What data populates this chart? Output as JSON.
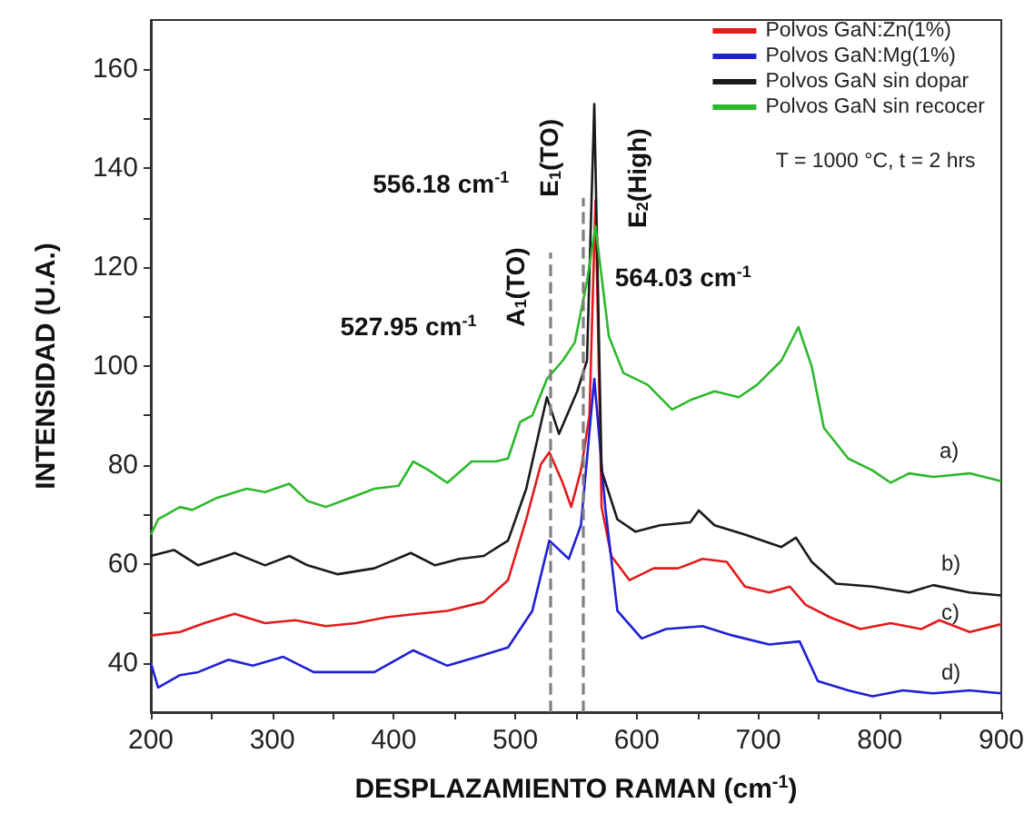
{
  "chart_data": {
    "type": "line",
    "xlabel": "DESPLAZAMIENTO RAMAN (cm$^{-1}$)",
    "ylabel": "INTENSIDAD (U.A.)",
    "xlim": [
      200,
      900
    ],
    "xticks": [
      200,
      {
        "value": 250,
        "label": null
      },
      300,
      {
        "value": 350,
        "label": null
      },
      400,
      {
        "value": 450,
        "label": null
      },
      500,
      {
        "value": 550,
        "label": null
      },
      600,
      {
        "value": 650,
        "label": null
      },
      700,
      {
        "value": 750,
        "label": null
      },
      800,
      {
        "value": 850,
        "label": null
      },
      900
    ],
    "ylim": [
      30,
      170
    ],
    "yticks": [
      40,
      {
        "value": 50,
        "label": null
      },
      60,
      {
        "value": 70,
        "label": null
      },
      80,
      {
        "value": 90,
        "label": null
      },
      100,
      {
        "value": 110,
        "label": null
      },
      120,
      {
        "value": 130,
        "label": null
      },
      140,
      {
        "value": 150,
        "label": null
      },
      160
    ],
    "grid": false,
    "legend": "top right",
    "marker": "none",
    "line_style": "solid",
    "series": [
      {
        "name": "Polvos GaN:Zn(1%)",
        "color": "#e31a1c",
        "x": [
          200,
          224,
          244,
          269,
          294,
          319,
          344,
          369,
          394,
          419,
          444,
          474,
          494,
          509,
          521,
          528,
          539,
          546,
          554,
          561,
          566,
          571,
          579,
          594,
          614,
          634,
          654,
          674,
          689,
          709,
          726,
          739,
          759,
          784,
          809,
          834,
          849,
          874,
          900
        ],
        "values": [
          45.5,
          46.2,
          48,
          49.9,
          48,
          48.6,
          47.4,
          48,
          49.2,
          49.9,
          50.5,
          52.3,
          56.7,
          69,
          80.1,
          82.6,
          76.4,
          71.5,
          78.9,
          90,
          133.5,
          71.5,
          61.6,
          56.7,
          59.1,
          59.1,
          61,
          60.4,
          55.4,
          54.2,
          55.4,
          51.7,
          49.2,
          46.8,
          48,
          46.8,
          48.6,
          46.2,
          47.8
        ]
      },
      {
        "name": "Polvos GaN:Mg(1%)",
        "color": "#1f1fd6",
        "x": [
          200,
          206,
          224,
          239,
          264,
          284,
          309,
          334,
          359,
          384,
          416,
          444,
          469,
          494,
          514,
          528,
          544,
          554,
          565,
          574,
          584,
          604,
          624,
          654,
          679,
          709,
          734,
          749,
          774,
          794,
          819,
          844,
          874,
          900
        ],
        "values": [
          40,
          35,
          37.5,
          38.1,
          40.6,
          39.4,
          41.2,
          38.1,
          38.1,
          38.1,
          42.5,
          39.4,
          41.2,
          43.1,
          50.5,
          64.7,
          61,
          67.8,
          97.4,
          71.5,
          50.5,
          44.9,
          46.8,
          47.4,
          45.5,
          43.7,
          44.3,
          36.3,
          34.4,
          33.2,
          34.4,
          33.8,
          34.4,
          33.8
        ]
      },
      {
        "name": "Polvos GaN sin dopar",
        "color": "#1a1a1a",
        "x": [
          200,
          219,
          239,
          269,
          294,
          314,
          329,
          354,
          384,
          414,
          434,
          454,
          474,
          494,
          509,
          526,
          536,
          551,
          559,
          565,
          571,
          584,
          599,
          619,
          644,
          651,
          664,
          689,
          719,
          731,
          744,
          764,
          794,
          824,
          844,
          874,
          900
        ],
        "values": [
          61.6,
          62.8,
          59.7,
          62.2,
          59.7,
          61.6,
          59.7,
          57.9,
          59.1,
          62.2,
          59.7,
          61,
          61.6,
          64.7,
          75.2,
          93.7,
          86.3,
          94.9,
          101.1,
          153,
          78.9,
          69,
          66.5,
          67.8,
          68.4,
          70.8,
          67.8,
          65.9,
          63.4,
          65.3,
          60.4,
          56,
          55.4,
          54.2,
          55.7,
          54.2,
          53.6
        ]
      },
      {
        "name": "Polvos GaN sin recocer",
        "color": "#2db82d",
        "x": [
          200,
          206,
          224,
          234,
          254,
          279,
          294,
          314,
          329,
          344,
          364,
          384,
          404,
          416,
          429,
          444,
          464,
          484,
          494,
          504,
          514,
          526,
          539,
          549,
          559,
          566,
          577,
          589,
          609,
          629,
          644,
          664,
          684,
          699,
          719,
          733,
          744,
          754,
          774,
          794,
          809,
          824,
          844,
          874,
          900
        ],
        "values": [
          65.9,
          69,
          71.5,
          70.9,
          73.3,
          75.2,
          74.5,
          76.2,
          72.7,
          71.5,
          73.3,
          75.2,
          75.8,
          80.7,
          78.9,
          76.4,
          80.7,
          80.7,
          81.3,
          88.7,
          90,
          97.4,
          101.1,
          104.8,
          117.2,
          128.3,
          106,
          98.6,
          96.2,
          91.2,
          93.1,
          94.9,
          93.7,
          96.2,
          101.1,
          107.9,
          99.9,
          87.5,
          81.3,
          78.9,
          76.4,
          78.3,
          77.6,
          78.3,
          76.7
        ]
      }
    ],
    "ref_lines": [
      {
        "axis": "x",
        "value": 527.95,
        "label": "A$_{1}$(TO)",
        "color": "#808080",
        "line_style": "dashed"
      },
      {
        "axis": "x",
        "value": 556.18,
        "label": "E$_{1}$(TO)",
        "color": "#808080",
        "line_style": "dashed"
      }
    ],
    "annotations": [
      {
        "text": "527.95 cm$^{-1}$",
        "x": 527.95,
        "y": 108
      },
      {
        "text": "556.18 cm$^{-1}$",
        "x": 556.18,
        "y": 137
      },
      {
        "text": "564.03 cm$^{-1}$",
        "x": 564.03,
        "y": 118
      },
      {
        "text": "E$_{2}$(High)",
        "x": 564.03,
        "y": 138
      },
      "a)",
      "b)",
      "c)",
      "d)",
      "T = 1000 °C, t = 2 hrs"
    ]
  }
}
